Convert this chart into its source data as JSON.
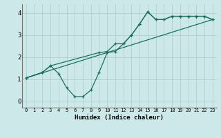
{
  "xlabel": "Humidex (Indice chaleur)",
  "bg_color": "#cce8e8",
  "line_color": "#1a6e60",
  "grid_color": "#aacccc",
  "xlim": [
    -0.5,
    23.5
  ],
  "ylim": [
    -0.3,
    4.4
  ],
  "xticks": [
    0,
    1,
    2,
    3,
    4,
    5,
    6,
    7,
    8,
    9,
    10,
    11,
    12,
    13,
    14,
    15,
    16,
    17,
    18,
    19,
    20,
    21,
    22,
    23
  ],
  "yticks": [
    0,
    1,
    2,
    3,
    4
  ],
  "curve1_x": [
    0,
    2,
    3,
    4,
    5,
    6,
    7,
    8,
    9,
    10,
    11,
    12,
    13,
    14,
    15,
    16,
    17,
    18,
    19,
    20,
    21,
    22,
    23
  ],
  "curve1_y": [
    1.05,
    1.3,
    1.6,
    1.25,
    0.6,
    0.2,
    0.2,
    0.5,
    1.3,
    2.2,
    2.25,
    2.6,
    3.0,
    3.5,
    4.05,
    3.7,
    3.7,
    3.85,
    3.85,
    3.85,
    3.85,
    3.85,
    3.7
  ],
  "line2_x": [
    0,
    23
  ],
  "line2_y": [
    1.05,
    3.7
  ],
  "curve3_x": [
    0,
    2,
    3,
    9,
    10,
    11,
    12,
    13,
    14,
    15,
    16,
    17,
    18,
    19,
    20,
    21,
    22,
    23
  ],
  "curve3_y": [
    1.05,
    1.3,
    1.6,
    2.2,
    2.25,
    2.6,
    2.6,
    3.0,
    3.5,
    4.05,
    3.7,
    3.7,
    3.85,
    3.85,
    3.85,
    3.85,
    3.85,
    3.7
  ]
}
